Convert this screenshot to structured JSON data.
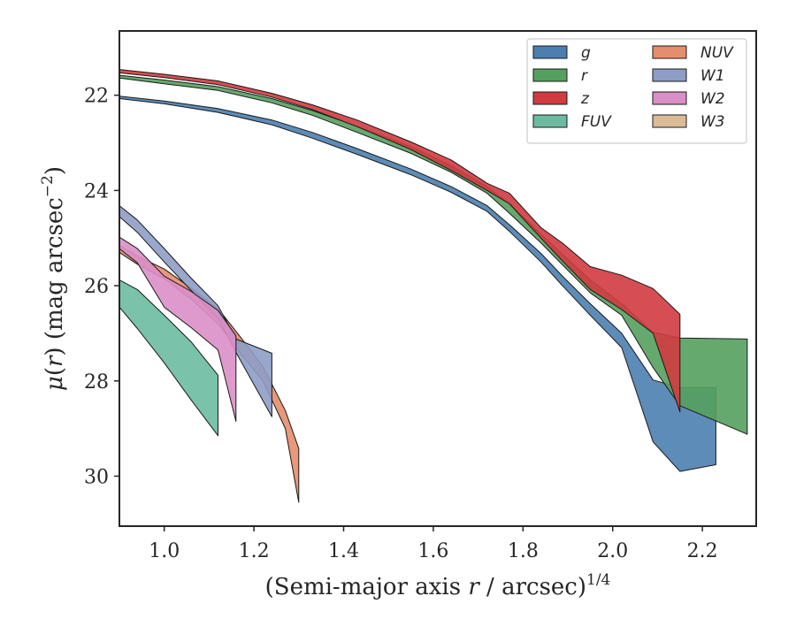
{
  "chart_data": {
    "type": "area",
    "xlabel": "(Semi-major axis r / arcsec)^{1/4}",
    "xlabel_parts": {
      "pre": "(Semi-major axis ",
      "var": "r",
      "post": " / arcsec)",
      "sup": "1/4"
    },
    "ylabel": "μ(r) (mag arcsec^{-2})",
    "ylabel_parts": {
      "mu": "μ",
      "open": "(",
      "var": "r",
      "close": ") (mag arcsec",
      "sup": "−2",
      "end": ")"
    },
    "xlim": [
      0.9,
      2.32
    ],
    "ylim": [
      31.05,
      20.65
    ],
    "y_inverted": true,
    "x_ticks": [
      1.0,
      1.2,
      1.4,
      1.6,
      1.8,
      2.0,
      2.2
    ],
    "x_tick_labels": [
      "1.0",
      "1.2",
      "1.4",
      "1.6",
      "1.8",
      "2.0",
      "2.2"
    ],
    "y_ticks": [
      22,
      24,
      26,
      28,
      30
    ],
    "y_tick_labels": [
      "22",
      "24",
      "26",
      "28",
      "30"
    ],
    "grid": false,
    "legend_position": "top-right",
    "legend_columns": 2,
    "series": [
      {
        "name": "g",
        "color": "#4C7FB0",
        "upper": [
          [
            0.9,
            22.02
          ],
          [
            1.0,
            22.12
          ],
          [
            1.12,
            22.28
          ],
          [
            1.24,
            22.52
          ],
          [
            1.33,
            22.78
          ],
          [
            1.43,
            23.12
          ],
          [
            1.55,
            23.55
          ],
          [
            1.64,
            23.92
          ],
          [
            1.72,
            24.32
          ],
          [
            1.77,
            24.72
          ],
          [
            1.84,
            25.32
          ],
          [
            1.89,
            25.82
          ],
          [
            1.95,
            26.38
          ],
          [
            2.02,
            27.0
          ],
          [
            2.09,
            27.98
          ],
          [
            2.15,
            28.14
          ],
          [
            2.23,
            28.14
          ]
        ],
        "lower": [
          [
            0.9,
            22.07
          ],
          [
            1.0,
            22.18
          ],
          [
            1.12,
            22.36
          ],
          [
            1.24,
            22.62
          ],
          [
            1.33,
            22.9
          ],
          [
            1.43,
            23.24
          ],
          [
            1.55,
            23.67
          ],
          [
            1.64,
            24.04
          ],
          [
            1.72,
            24.44
          ],
          [
            1.77,
            24.86
          ],
          [
            1.84,
            25.5
          ],
          [
            1.89,
            26.02
          ],
          [
            1.95,
            26.62
          ],
          [
            2.02,
            27.3
          ],
          [
            2.09,
            29.28
          ],
          [
            2.15,
            29.9
          ],
          [
            2.23,
            29.76
          ]
        ]
      },
      {
        "name": "r",
        "color": "#55A05E",
        "upper": [
          [
            0.9,
            21.58
          ],
          [
            1.0,
            21.68
          ],
          [
            1.12,
            21.82
          ],
          [
            1.24,
            22.07
          ],
          [
            1.33,
            22.32
          ],
          [
            1.43,
            22.65
          ],
          [
            1.55,
            23.08
          ],
          [
            1.64,
            23.48
          ],
          [
            1.72,
            23.92
          ],
          [
            1.77,
            24.28
          ],
          [
            1.84,
            24.92
          ],
          [
            1.89,
            25.36
          ],
          [
            1.95,
            25.88
          ],
          [
            2.02,
            26.38
          ],
          [
            2.09,
            26.98
          ],
          [
            2.15,
            27.1
          ],
          [
            2.3,
            27.12
          ]
        ],
        "lower": [
          [
            0.9,
            21.64
          ],
          [
            1.0,
            21.76
          ],
          [
            1.12,
            21.9
          ],
          [
            1.24,
            22.16
          ],
          [
            1.33,
            22.42
          ],
          [
            1.43,
            22.78
          ],
          [
            1.55,
            23.22
          ],
          [
            1.64,
            23.62
          ],
          [
            1.72,
            24.06
          ],
          [
            1.77,
            24.48
          ],
          [
            1.84,
            25.1
          ],
          [
            1.89,
            25.58
          ],
          [
            1.95,
            26.15
          ],
          [
            2.02,
            26.62
          ],
          [
            2.09,
            27.72
          ],
          [
            2.15,
            28.52
          ],
          [
            2.3,
            29.12
          ]
        ]
      },
      {
        "name": "z",
        "color": "#D03B40",
        "upper": [
          [
            0.9,
            21.46
          ],
          [
            1.0,
            21.56
          ],
          [
            1.12,
            21.7
          ],
          [
            1.24,
            21.96
          ],
          [
            1.33,
            22.2
          ],
          [
            1.43,
            22.52
          ],
          [
            1.55,
            22.98
          ],
          [
            1.64,
            23.36
          ],
          [
            1.72,
            23.85
          ],
          [
            1.77,
            24.06
          ],
          [
            1.84,
            24.78
          ],
          [
            1.89,
            25.12
          ],
          [
            1.95,
            25.6
          ],
          [
            2.02,
            25.78
          ],
          [
            2.09,
            26.06
          ],
          [
            2.15,
            26.6
          ]
        ],
        "lower": [
          [
            0.9,
            21.53
          ],
          [
            1.0,
            21.63
          ],
          [
            1.12,
            21.78
          ],
          [
            1.24,
            22.04
          ],
          [
            1.33,
            22.3
          ],
          [
            1.43,
            22.66
          ],
          [
            1.55,
            23.14
          ],
          [
            1.64,
            23.58
          ],
          [
            1.72,
            24.0
          ],
          [
            1.77,
            24.28
          ],
          [
            1.84,
            25.0
          ],
          [
            1.89,
            25.5
          ],
          [
            1.95,
            26.08
          ],
          [
            2.02,
            26.5
          ],
          [
            2.09,
            27.0
          ],
          [
            2.15,
            28.65
          ]
        ]
      },
      {
        "name": "FUV",
        "color": "#6CBBA0",
        "upper": [
          [
            0.9,
            25.88
          ],
          [
            0.94,
            26.08
          ],
          [
            1.0,
            26.62
          ],
          [
            1.06,
            27.18
          ],
          [
            1.12,
            27.88
          ]
        ],
        "lower": [
          [
            0.9,
            26.45
          ],
          [
            0.94,
            26.9
          ],
          [
            1.0,
            27.62
          ],
          [
            1.06,
            28.4
          ],
          [
            1.12,
            29.15
          ]
        ]
      },
      {
        "name": "NUV",
        "color": "#E58E6C",
        "upper": [
          [
            0.9,
            25.15
          ],
          [
            0.94,
            25.38
          ],
          [
            1.0,
            25.65
          ],
          [
            1.06,
            26.05
          ],
          [
            1.12,
            26.48
          ],
          [
            1.17,
            27.08
          ],
          [
            1.22,
            27.7
          ],
          [
            1.27,
            28.62
          ],
          [
            1.3,
            29.42
          ]
        ],
        "lower": [
          [
            0.9,
            25.3
          ],
          [
            0.94,
            25.55
          ],
          [
            1.0,
            25.85
          ],
          [
            1.06,
            26.28
          ],
          [
            1.12,
            26.8
          ],
          [
            1.17,
            27.42
          ],
          [
            1.22,
            28.0
          ],
          [
            1.27,
            29.0
          ],
          [
            1.3,
            30.55
          ]
        ]
      },
      {
        "name": "W1",
        "color": "#8E9DC6",
        "upper": [
          [
            0.9,
            24.32
          ],
          [
            0.94,
            24.62
          ],
          [
            1.0,
            25.22
          ],
          [
            1.06,
            25.84
          ],
          [
            1.12,
            26.42
          ],
          [
            1.16,
            27.12
          ],
          [
            1.24,
            27.42
          ]
        ],
        "lower": [
          [
            0.9,
            24.55
          ],
          [
            0.94,
            24.88
          ],
          [
            1.0,
            25.5
          ],
          [
            1.06,
            26.1
          ],
          [
            1.12,
            26.68
          ],
          [
            1.16,
            27.4
          ],
          [
            1.24,
            28.75
          ]
        ]
      },
      {
        "name": "W2",
        "color": "#DA8FC6",
        "upper": [
          [
            0.9,
            24.98
          ],
          [
            0.94,
            25.22
          ],
          [
            1.0,
            25.8
          ],
          [
            1.06,
            26.12
          ],
          [
            1.12,
            26.52
          ],
          [
            1.16,
            27.05
          ]
        ],
        "lower": [
          [
            0.9,
            25.22
          ],
          [
            0.94,
            25.52
          ],
          [
            1.0,
            26.45
          ],
          [
            1.06,
            26.88
          ],
          [
            1.12,
            27.35
          ],
          [
            1.16,
            28.85
          ]
        ]
      },
      {
        "name": "W3",
        "color": "#D9BC96",
        "upper": [],
        "lower": []
      }
    ]
  }
}
